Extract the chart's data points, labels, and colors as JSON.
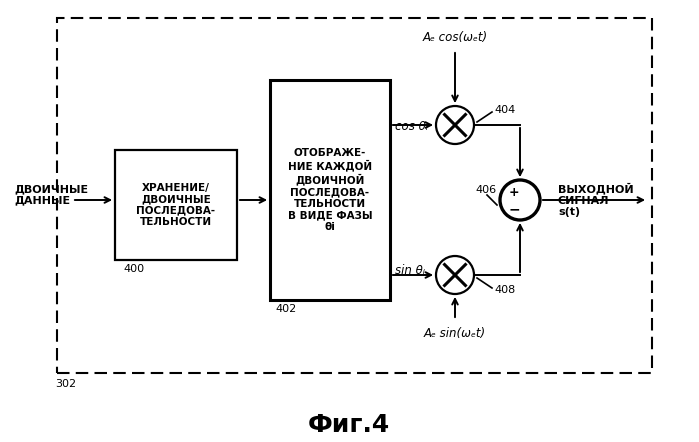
{
  "title": "Фиг.4",
  "bg_color": "#ffffff",
  "label_302": "302",
  "input_label": "ДВОИЧНЫЕ\nДАННЫЕ",
  "box400_label": "ХРАНЕНИЕ/\nДВОИЧНЫЕ\nПОСЛЕДОВА-\nТЕЛЬНОСТИ",
  "box400_num": "400",
  "box402_label": "ОТОБРАЖЕ-\nНИЕ КАЖДОЙ\nДВОИЧНОЙ\nПОСЛЕДОВА-\nТЕЛЬНОСТИ\nВ ВИДЕ ФАЗЫ\nθi",
  "box402_num": "402",
  "output_label": "ВЫХОДНОЙ\nСИГНАЛ\ns(t)",
  "top_signal": "Aₑ cos(ωₑt)",
  "bottom_signal": "Aₑ sin(ωₑt)",
  "cos_label": "cos θᵢ",
  "sin_label": "sin θᵢ",
  "label_404": "404",
  "label_406": "406",
  "label_408": "408",
  "plus_sign": "+",
  "minus_sign": "−"
}
